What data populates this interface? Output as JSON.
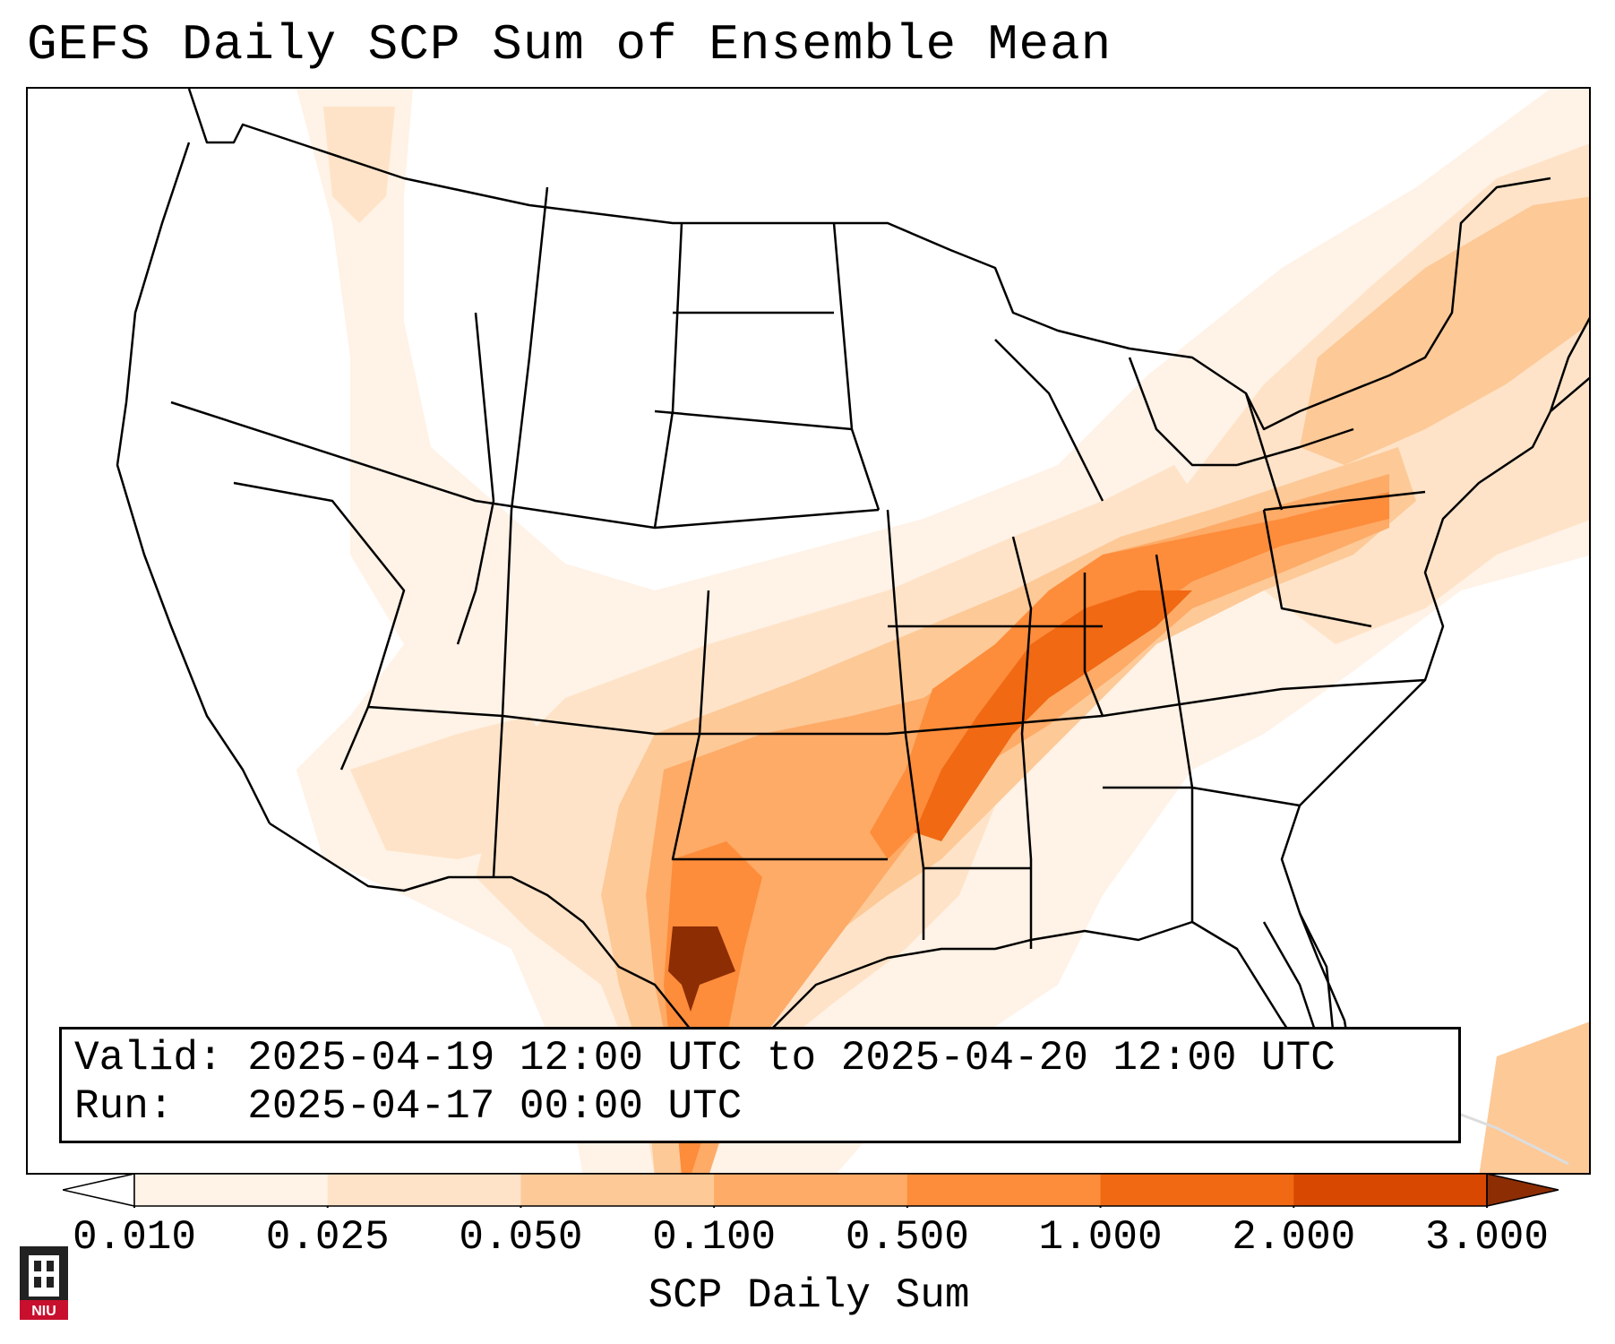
{
  "title": "GEFS Daily SCP Sum of Ensemble Mean",
  "info": {
    "valid_label": "Valid:",
    "valid_value": "2025-04-19 12:00 UTC to 2025-04-20 12:00 UTC",
    "run_label": "Run:",
    "run_value": "2025-04-17 00:00 UTC"
  },
  "colorbar": {
    "title": "SCP Daily Sum",
    "ticks": [
      "0.010",
      "0.025",
      "0.050",
      "0.100",
      "0.500",
      "1.000",
      "2.000",
      "3.000"
    ],
    "colors": [
      "#fff2e6",
      "#fee3c8",
      "#fdc997",
      "#fdab67",
      "#fd8c3b",
      "#f16913",
      "#d94801",
      "#8c2d04"
    ],
    "extend": "both"
  },
  "map": {
    "region": "CONUS",
    "variable": "SCP",
    "max_location_description": "West Texas"
  },
  "logo": {
    "text": "NIU",
    "color": "#c8102e"
  }
}
